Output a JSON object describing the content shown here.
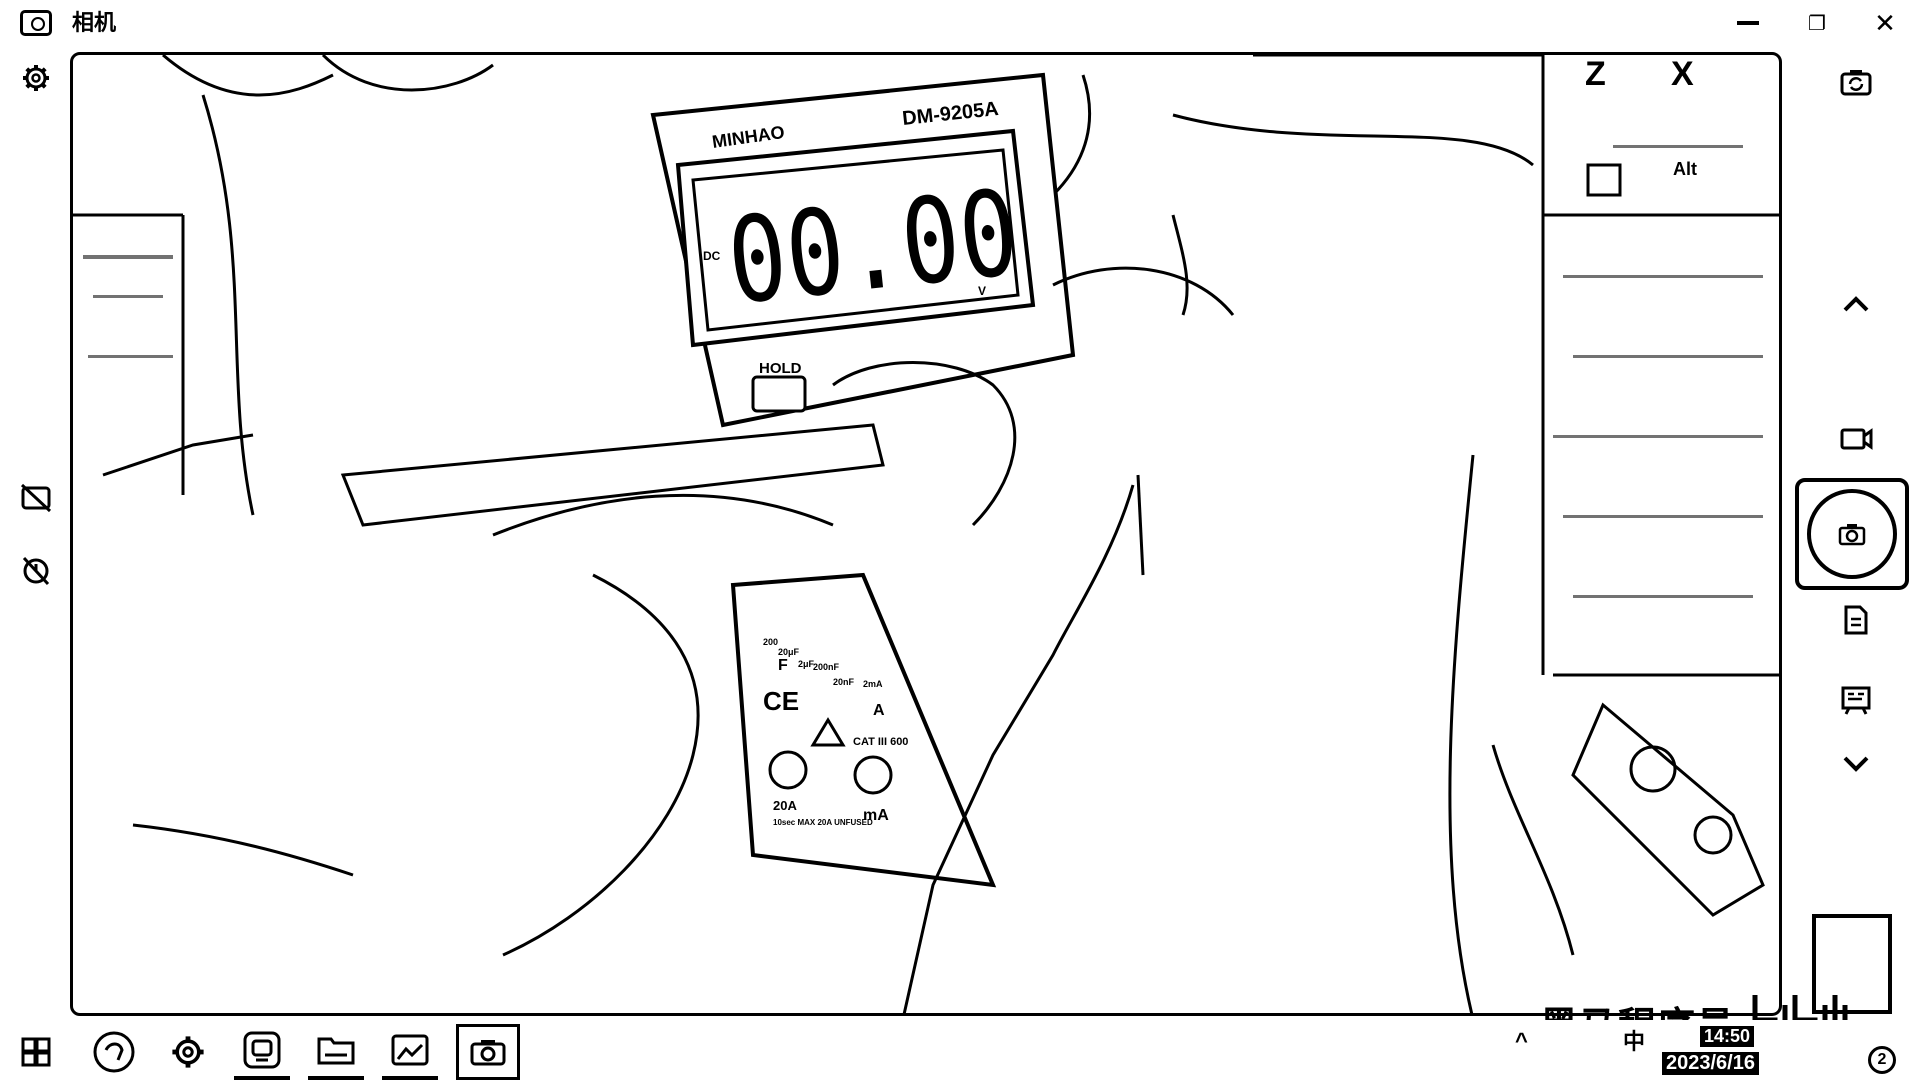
{
  "app": {
    "title": "相机"
  },
  "window_controls": {
    "minimize_icon": "minimize-icon",
    "maximize_icon": "restore-icon",
    "close_icon": "close-icon",
    "close_glyph": "✕",
    "restore_glyph": "❐"
  },
  "left_sidebar": {
    "items": [
      {
        "name": "settings",
        "icon": "gear-icon"
      },
      {
        "name": "hdr-off",
        "icon": "hdr-off-icon"
      },
      {
        "name": "timer-off",
        "icon": "timer-off-icon"
      }
    ]
  },
  "right_sidebar": {
    "items": [
      {
        "name": "switch-camera",
        "icon": "switch-camera-icon"
      },
      {
        "name": "scroll-up",
        "icon": "chevron-up-icon"
      },
      {
        "name": "video-mode",
        "icon": "video-icon"
      },
      {
        "name": "photo-mode",
        "icon": "camera-icon"
      },
      {
        "name": "document-mode",
        "icon": "document-icon"
      },
      {
        "name": "barcode-mode",
        "icon": "barcode-icon"
      },
      {
        "name": "scroll-down",
        "icon": "chevron-down-icon"
      }
    ]
  },
  "viewfinder": {
    "meter_brand": "MINHAO",
    "meter_model": "DM-9205A",
    "meter_reading": "00.00",
    "meter_dc": "DC",
    "meter_unit": "V",
    "meter_hold": "HOLD",
    "meter_ce": "CE",
    "meter_cat": "CAT III 600",
    "meter_20a": "20A",
    "meter_fuse": "10sec MAX 20A UNFUSED",
    "meter_ma": "mA",
    "meter_a": "A",
    "meter_f": "F",
    "meter_20nf": "20nF",
    "meter_200nf": "200nF",
    "meter_2ma": "2mA",
    "meter_20mf": "20μF",
    "meter_2mf": "2μF",
    "meter_200": "200",
    "bg_z": "Z",
    "bg_x": "X",
    "bg_alt": "Alt"
  },
  "taskbar": {
    "items": [
      {
        "name": "start",
        "icon": "windows-icon"
      },
      {
        "name": "app-1",
        "icon": "browser-icon"
      },
      {
        "name": "app-2",
        "icon": "settings-gear-icon"
      },
      {
        "name": "app-3",
        "icon": "chat-icon"
      },
      {
        "name": "app-4",
        "icon": "folder-icon"
      },
      {
        "name": "app-5",
        "icon": "photos-icon"
      },
      {
        "name": "camera",
        "icon": "camera-icon",
        "active": true
      }
    ],
    "tray": {
      "chevron": "^",
      "ime": "中",
      "time": "14:50",
      "date": "2023/6/16",
      "notification_count": "2"
    }
  },
  "watermark": {
    "text": "黑马程序员",
    "brand_mark": "bilibili"
  }
}
